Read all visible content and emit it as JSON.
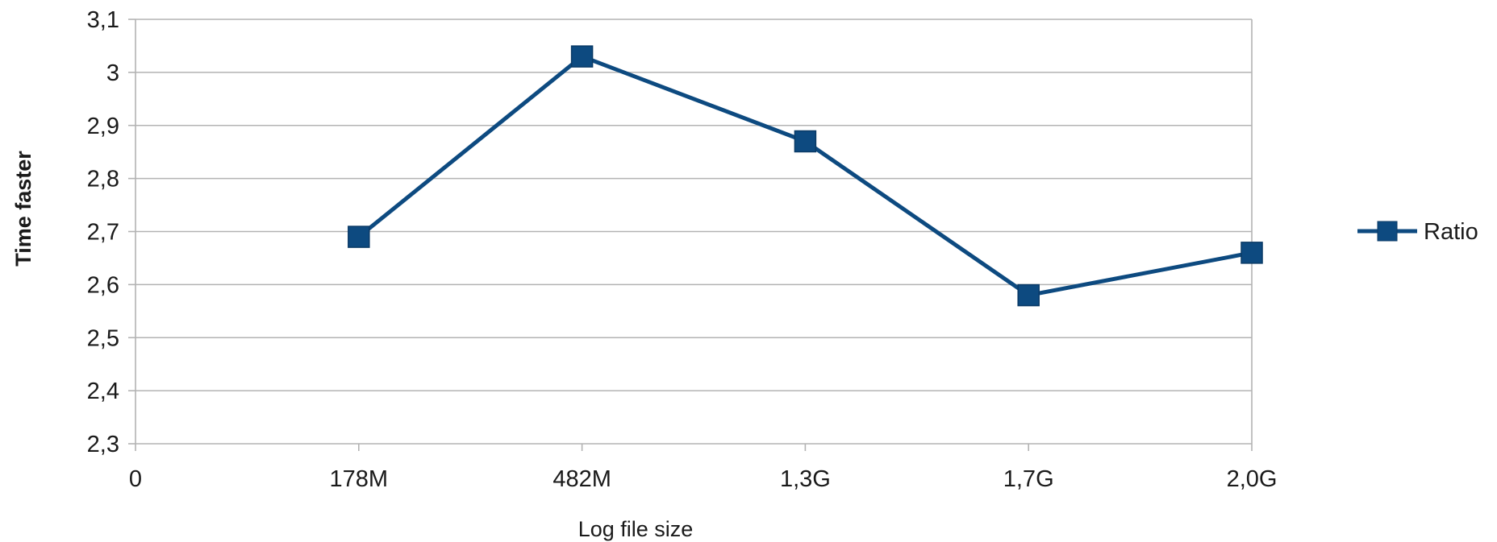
{
  "chart_data": {
    "type": "line",
    "xlabel": "Log file size",
    "ylabel": "Time faster",
    "x_tick_labels": [
      "0",
      "178M",
      "482M",
      "1,3G",
      "1,7G",
      "2,0G"
    ],
    "categories": [
      "178M",
      "482M",
      "1,3G",
      "1,7G",
      "2,0G"
    ],
    "y_tick_labels": [
      "2,3",
      "2,4",
      "2,5",
      "2,6",
      "2,7",
      "2,8",
      "2,9",
      "3",
      "3,1"
    ],
    "ylim": [
      2.3,
      3.1
    ],
    "grid": true,
    "legend_placement": "right",
    "series": [
      {
        "name": "Ratio",
        "values": [
          2.69,
          3.03,
          2.87,
          2.58,
          2.66
        ],
        "color": "#0d4a80"
      }
    ]
  },
  "colors": {
    "series": "#0d4a80",
    "grid": "#b3b3b3",
    "axis": "#b3b3b3"
  }
}
